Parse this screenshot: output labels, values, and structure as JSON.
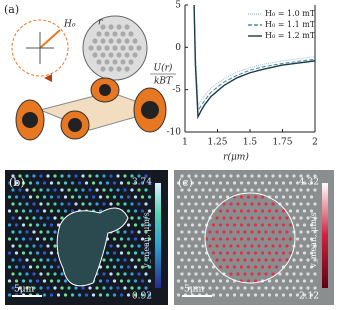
{
  "panel_labels": [
    "(a)",
    "(b)",
    "(c)"
  ],
  "illustration": {
    "field_label": "H₀",
    "distance_label": "r"
  },
  "chart_data": {
    "type": "line",
    "xlabel": "r(μm)",
    "ylabel_numerator": "U(r)",
    "ylabel_denominator": "kBT",
    "x": [
      1.07,
      1.08,
      1.1,
      1.12,
      1.15,
      1.2,
      1.3,
      1.4,
      1.5,
      1.6,
      1.75,
      1.9,
      2.0
    ],
    "series": [
      {
        "name": "H₀ = 1.0 mT",
        "color": "#a9c4cf",
        "dash": "1,1",
        "values": [
          5,
          -1,
          -6.8,
          -6.4,
          -5.7,
          -4.8,
          -3.7,
          -2.9,
          -2.4,
          -2.0,
          -1.6,
          -1.3,
          -1.1
        ]
      },
      {
        "name": "H₀ = 1.1 mT",
        "color": "#4b8fa0",
        "dash": "4,2",
        "values": [
          5,
          -1.5,
          -7.5,
          -7.0,
          -6.3,
          -5.3,
          -4.1,
          -3.3,
          -2.7,
          -2.3,
          -1.9,
          -1.6,
          -1.4
        ]
      },
      {
        "name": "H₀ = 1.2 mT",
        "color": "#1b3a4a",
        "dash": "",
        "values": [
          5,
          -2,
          -8.2,
          -7.6,
          -6.8,
          -5.8,
          -4.5,
          -3.6,
          -3.0,
          -2.6,
          -2.1,
          -1.8,
          -1.6
        ]
      }
    ],
    "xlim": [
      1,
      2
    ],
    "ylim": [
      -10,
      5
    ],
    "xticks": [
      1,
      1.25,
      1.5,
      1.75,
      2
    ],
    "yticks": [
      5,
      0,
      -5,
      -10
    ]
  },
  "panel_b": {
    "colorbar_max": "3.74",
    "colorbar_min": "0.92",
    "colorbar_label": "v_mean, μm/s",
    "scale_bar": "5μm"
  },
  "panel_c": {
    "colorbar_max": "4.32",
    "colorbar_min": "2.12",
    "colorbar_label": "v_mean, μm/s",
    "scale_bar": "5μm"
  }
}
